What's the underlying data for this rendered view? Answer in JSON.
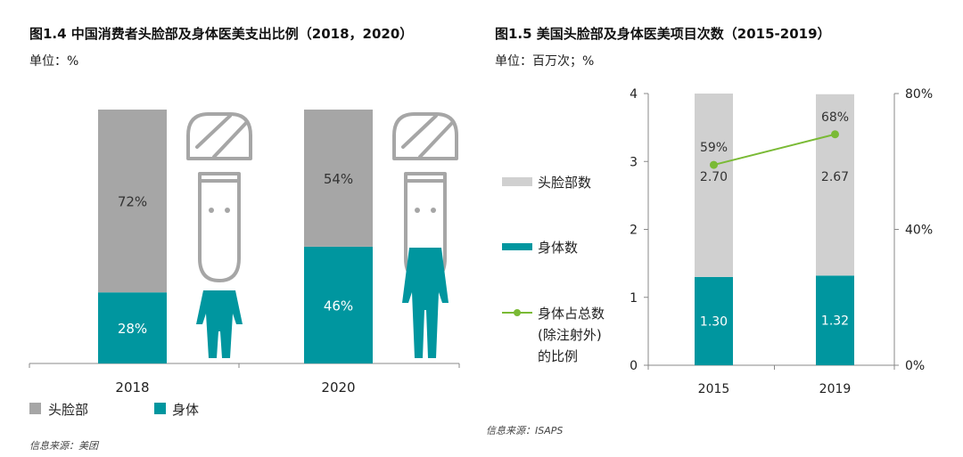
{
  "left": {
    "title": "图1.4 中国消费者头脸部及身体医美支出比例（2018，2020）",
    "unit": "单位：%",
    "source": "信息来源：美团",
    "colors": {
      "head": "#a6a6a6",
      "body": "#00969f"
    },
    "icons": [
      "head-figure-icon",
      "body-figure-icon"
    ]
  },
  "right": {
    "title": "图1.5 美国头脸部及身体医美项目次数（2015-2019）",
    "unit": "单位：百万次；%",
    "source": "信息来源：ISAPS",
    "colors": {
      "head": "#d0d0d0",
      "body": "#00969f",
      "line": "#7aba35"
    }
  },
  "chart_data": [
    {
      "type": "bar",
      "stacked": true,
      "percent": true,
      "categories": [
        "2018",
        "2020"
      ],
      "series": [
        {
          "name": "头脸部",
          "values": [
            72,
            54
          ],
          "labels": [
            "72%",
            "54%"
          ]
        },
        {
          "name": "身体",
          "values": [
            28,
            46
          ],
          "labels": [
            "28%",
            "46%"
          ]
        }
      ],
      "ylim": [
        0,
        100
      ],
      "legend": "bottom-left"
    },
    {
      "type": "bar",
      "stacked": true,
      "categories": [
        "2015",
        "2019"
      ],
      "series": [
        {
          "name": "头脸部数",
          "values": [
            2.7,
            2.67
          ],
          "labels": [
            "2.70",
            "2.67"
          ]
        },
        {
          "name": "身体数",
          "values": [
            1.3,
            1.32
          ],
          "labels": [
            "1.30",
            "1.32"
          ]
        },
        {
          "name": "身体占总数(除注射外)的比例",
          "legend_lines": [
            "身体占总数",
            "(除注射外)",
            "的比例"
          ],
          "type": "line",
          "axis": "right",
          "values": [
            59,
            68
          ],
          "labels": [
            "59%",
            "68%"
          ]
        }
      ],
      "ylim": [
        0,
        4
      ],
      "yticks": [
        "0",
        "1",
        "2",
        "3",
        "4"
      ],
      "y2lim": [
        0,
        80
      ],
      "y2ticks": [
        "0%",
        "40%",
        "80%"
      ],
      "legend": "left"
    }
  ]
}
